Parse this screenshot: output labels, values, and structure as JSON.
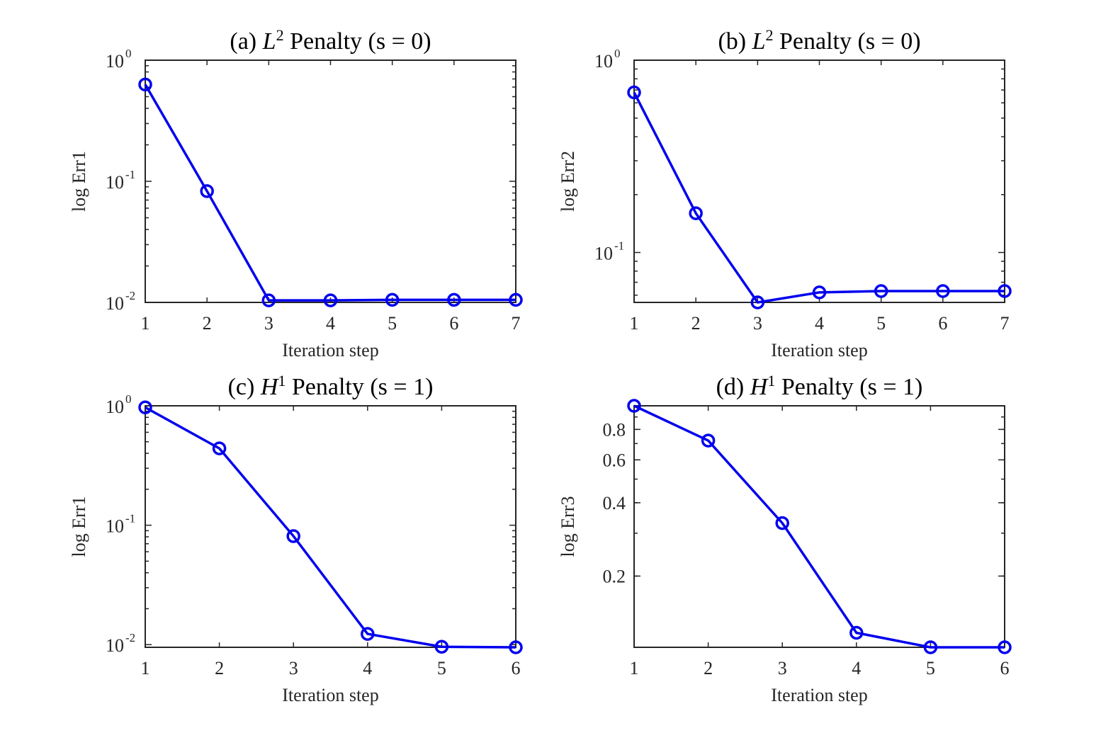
{
  "colors": {
    "series": "#0000ee",
    "axis": "#262626"
  },
  "chart_data": [
    {
      "type": "line",
      "title_prefix": "(a) ",
      "title_symbol": "L",
      "title_sup": "2",
      "title_suffix": " Penalty (s = 0)",
      "xlabel": "Iteration step",
      "ylabel": "log Err1",
      "yscale": "log",
      "xlim": [
        1,
        7
      ],
      "ylim": [
        0.01,
        1
      ],
      "x": [
        1,
        2,
        3,
        4,
        5,
        6,
        7
      ],
      "y": [
        0.63,
        0.083,
        0.0104,
        0.0104,
        0.0105,
        0.0105,
        0.0105
      ],
      "xticks": [
        1,
        2,
        3,
        4,
        5,
        6,
        7
      ],
      "yticks": [
        {
          "value": 1,
          "base": "10",
          "exp": "0"
        },
        {
          "value": 0.1,
          "base": "10",
          "exp": "-1"
        },
        {
          "value": 0.01,
          "base": "10",
          "exp": "-2"
        }
      ]
    },
    {
      "type": "line",
      "title_prefix": "(b) ",
      "title_symbol": "L",
      "title_sup": "2",
      "title_suffix": " Penalty (s = 0)",
      "xlabel": "Iteration step",
      "ylabel": "log Err2",
      "yscale": "log",
      "xlim": [
        1,
        7
      ],
      "ylim": [
        0.055,
        1
      ],
      "x": [
        1,
        2,
        3,
        4,
        5,
        6,
        7
      ],
      "y": [
        0.68,
        0.16,
        0.055,
        0.062,
        0.063,
        0.063,
        0.063
      ],
      "xticks": [
        1,
        2,
        3,
        4,
        5,
        6,
        7
      ],
      "yticks": [
        {
          "value": 1,
          "base": "10",
          "exp": "0"
        },
        {
          "value": 0.1,
          "base": "10",
          "exp": "-1"
        }
      ]
    },
    {
      "type": "line",
      "title_prefix": "(c) ",
      "title_symbol": "H",
      "title_sup": "1",
      "title_suffix": " Penalty (s = 1)",
      "xlabel": "Iteration step",
      "ylabel": "log Err1",
      "yscale": "log",
      "xlim": [
        1,
        6
      ],
      "ylim": [
        0.0095,
        1
      ],
      "x": [
        1,
        2,
        3,
        4,
        5,
        6
      ],
      "y": [
        0.97,
        0.44,
        0.081,
        0.0123,
        0.0096,
        0.0095
      ],
      "xticks": [
        1,
        2,
        3,
        4,
        5,
        6
      ],
      "yticks": [
        {
          "value": 1,
          "base": "10",
          "exp": "0"
        },
        {
          "value": 0.1,
          "base": "10",
          "exp": "-1"
        },
        {
          "value": 0.01,
          "base": "10",
          "exp": "-2"
        }
      ]
    },
    {
      "type": "line",
      "title_prefix": "(d) ",
      "title_symbol": "H",
      "title_sup": "1",
      "title_suffix": " Penalty (s = 1)",
      "xlabel": "Iteration step",
      "ylabel": "log Err3",
      "yscale": "log",
      "xlim": [
        1,
        6
      ],
      "ylim": [
        0.102,
        1.0
      ],
      "x": [
        1,
        2,
        3,
        4,
        5,
        6
      ],
      "y": [
        1.0,
        0.72,
        0.33,
        0.117,
        0.102,
        0.102
      ],
      "xticks": [
        1,
        2,
        3,
        4,
        5,
        6
      ],
      "yticks": [
        {
          "value": 0.8,
          "text": "0.8"
        },
        {
          "value": 0.6,
          "text": "0.6"
        },
        {
          "value": 0.4,
          "text": "0.4"
        },
        {
          "value": 0.2,
          "text": "0.2"
        }
      ]
    }
  ]
}
